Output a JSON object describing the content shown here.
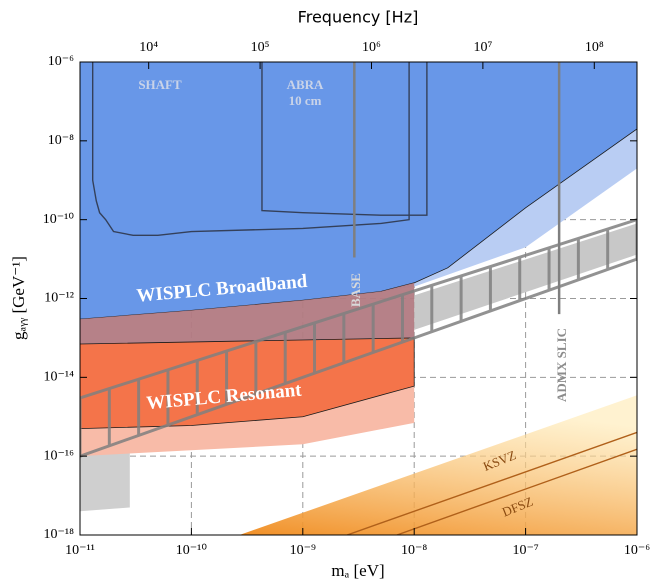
{
  "chart_data": {
    "type": "region",
    "xlabel": "mₐ [eV]",
    "ylabel": "gₐᵧᵧ [GeV⁻¹]",
    "x2label": "Frequency [Hz]",
    "xscale": "log",
    "yscale": "log",
    "x2scale": "log",
    "xlim": [
      1e-11,
      1e-06
    ],
    "ylim": [
      1e-18,
      1e-06
    ],
    "x2lim": [
      2418,
      241800000
    ],
    "grid": true,
    "xticks": [
      {
        "value": 1e-11,
        "label": "10⁻¹¹"
      },
      {
        "value": 1e-10,
        "label": "10⁻¹⁰"
      },
      {
        "value": 1e-09,
        "label": "10⁻⁹"
      },
      {
        "value": 1e-08,
        "label": "10⁻⁸"
      },
      {
        "value": 1e-07,
        "label": "10⁻⁷"
      },
      {
        "value": 1e-06,
        "label": "10⁻⁶"
      }
    ],
    "yticks": [
      {
        "value": 1e-18,
        "label": "10⁻¹⁸"
      },
      {
        "value": 1e-16,
        "label": "10⁻¹⁶"
      },
      {
        "value": 1e-14,
        "label": "10⁻¹⁴"
      },
      {
        "value": 1e-12,
        "label": "10⁻¹²"
      },
      {
        "value": 1e-10,
        "label": "10⁻¹⁰"
      },
      {
        "value": 1e-08,
        "label": "10⁻⁸"
      },
      {
        "value": 1e-06,
        "label": "10⁻⁶"
      }
    ],
    "x2ticks": [
      {
        "value": 10000,
        "label": "10⁴"
      },
      {
        "value": 100000,
        "label": "10⁵"
      },
      {
        "value": 1000000,
        "label": "10⁶"
      },
      {
        "value": 10000000,
        "label": "10⁷"
      },
      {
        "value": 100000000,
        "label": "10⁸"
      }
    ],
    "regions": [
      {
        "color": "#fdb44b",
        "x": [
          2.7e-10,
          1e-06,
          1e-06
        ],
        "y": [
          1e-18,
          1e-18,
          3.5e-15
        ]
      },
      {
        "color": "#cfcfcf",
        "x": [
          1e-11,
          2.8e-11,
          2.8e-11,
          1e-11
        ],
        "y": [
          3e-16,
          3e-16,
          5e-18,
          4e-18
        ]
      },
      {
        "color": "#c8c8c8",
        "x": [
          1e-08,
          1e-06,
          1e-06,
          1e-08
        ],
        "y": [
          1.2e-12,
          8e-11,
          1.3e-11,
          1.6e-13
        ]
      },
      {
        "color": "#b9cdf3",
        "x": [
          5e-09,
          1e-06,
          1e-06,
          1e-07,
          1e-08
        ],
        "y": [
          1.5e-12,
          2e-08,
          2e-09,
          2e-11,
          2e-12
        ]
      },
      {
        "color": "#6897e8",
        "x": [
          1e-11,
          1e-06,
          1e-06,
          1e-07,
          2e-08,
          1e-08,
          5e-09,
          1e-09,
          1e-10,
          1e-11
        ],
        "y": [
          1e-06,
          1e-06,
          2e-08,
          2e-10,
          6e-12,
          2.5e-12,
          1.5e-12,
          9e-13,
          5e-13,
          3e-13
        ]
      },
      {
        "color": "#b27a82",
        "x": [
          1e-11,
          1e-10,
          1e-09,
          5e-09,
          1e-08,
          1e-08,
          1e-11
        ],
        "y": [
          3e-13,
          5e-13,
          9e-13,
          1.5e-12,
          2.5e-12,
          1e-13,
          7e-14
        ]
      },
      {
        "color": "#f8bba8",
        "x": [
          1e-11,
          1e-10,
          1e-09,
          1e-08,
          1e-08,
          1e-09,
          1e-11
        ],
        "y": [
          5e-16,
          6e-16,
          1e-15,
          6e-15,
          7e-16,
          2e-16,
          1e-16
        ]
      },
      {
        "color": "#f4744a",
        "x": [
          1e-11,
          1e-08,
          1e-08,
          1e-09,
          1e-10,
          1e-11
        ],
        "y": [
          7e-14,
          1e-13,
          6e-15,
          1e-15,
          6e-16,
          5e-16
        ]
      }
    ],
    "ladder": {
      "color": "#808080",
      "x": [
        1e-11,
        1e-06
      ],
      "upper": [
        3e-15,
        1e-10
      ],
      "lower": [
        1e-16,
        1e-11
      ]
    },
    "curves": [
      {
        "color": "#34405a",
        "x": [
          1.3e-11,
          1.3e-11,
          1.4e-11,
          1.5e-11,
          1.7e-11,
          2e-11,
          3e-11,
          5e-11,
          1e-10,
          1e-09,
          5e-09,
          9e-09,
          9e-09
        ],
        "y": [
          1e-06,
          1e-09,
          3e-10,
          1.5e-10,
          1e-10,
          5e-11,
          4e-11,
          4e-11,
          5e-11,
          6e-11,
          8e-11,
          1e-10,
          1e-06
        ]
      },
      {
        "color": "#34405a",
        "x": [
          4.3e-10,
          4.3e-10,
          1e-09,
          5e-09,
          1.3e-08,
          1.3e-08
        ],
        "y": [
          1e-06,
          1.7e-10,
          1.5e-10,
          1.3e-10,
          1.3e-10,
          1e-06
        ]
      },
      {
        "color": "#7f7f7f",
        "x": [
          2.9e-09,
          2.9e-09
        ],
        "y": [
          1e-06,
          1.1e-11
        ]
      },
      {
        "color": "#7f7f7f",
        "x": [
          2e-07,
          2e-07
        ],
        "y": [
          1e-06,
          4e-13
        ]
      },
      {
        "color": "#b0601a",
        "x": [
          2.5e-09,
          1e-06
        ],
        "y": [
          1e-18,
          4e-16
        ]
      },
      {
        "color": "#b0601a",
        "x": [
          7e-09,
          1e-06
        ],
        "y": [
          1e-18,
          1.5e-16
        ]
      }
    ],
    "annotations": [
      "SHAFT",
      "ABRA",
      "10 cm",
      "WISPLC Broadband",
      "WISPLC Resonant",
      "BASE",
      "ADMX SLIC",
      "KSVZ",
      "DFSZ"
    ]
  }
}
